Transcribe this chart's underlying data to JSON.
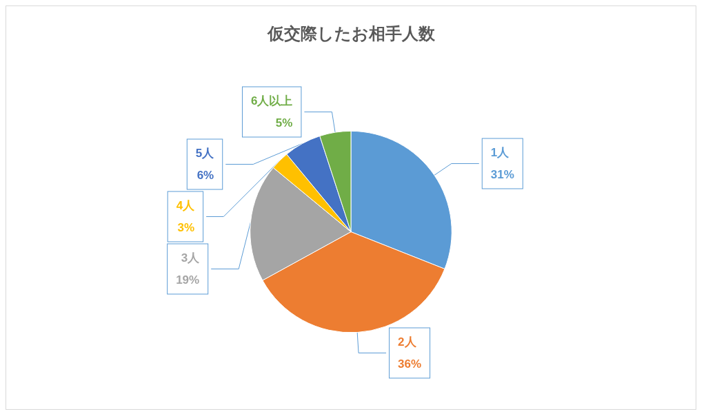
{
  "chart_data": {
    "type": "pie",
    "title": "仮交際したお相手人数",
    "categories": [
      "1人",
      "2人",
      "3人",
      "4人",
      "5人",
      "6人以上"
    ],
    "values": [
      31,
      36,
      19,
      3,
      6,
      5
    ],
    "value_labels": [
      "31%",
      "36%",
      "19%",
      "3%",
      "6%",
      "5%"
    ],
    "colors": [
      "#5b9bd5",
      "#ed7d31",
      "#a5a5a5",
      "#ffc000",
      "#4472c4",
      "#70ad47"
    ]
  }
}
